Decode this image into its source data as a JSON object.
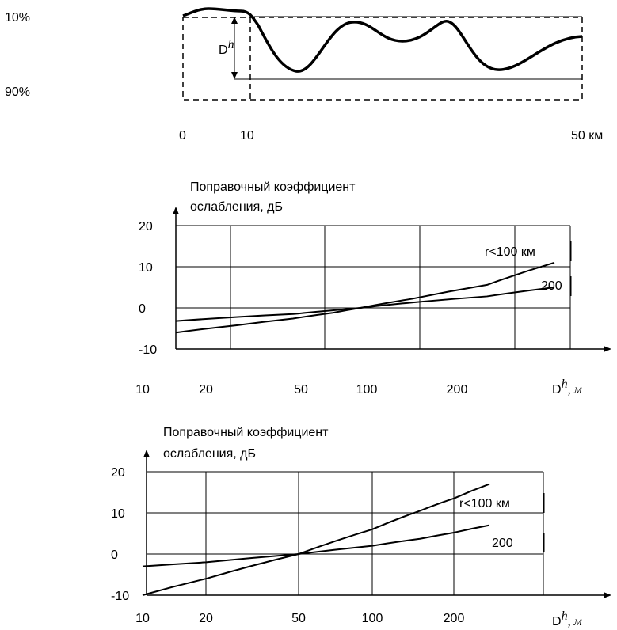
{
  "terrain": {
    "label_top_pct": "10%",
    "label_bottom_pct": "90%",
    "dh_label_main": "D",
    "dh_label_sup": "h",
    "x_ticks": [
      "0",
      "10",
      "50 км"
    ]
  },
  "chart_data": [
    {
      "type": "line",
      "title": "Поправочный коэффициент ослабления, дБ",
      "title_lines": [
        "Поправочный коэффициент",
        "ослабления, дБ"
      ],
      "xlabel_main": "D",
      "xlabel_sup": "h",
      "xlabel_unit": ", м",
      "x_scale": "log",
      "x_ticks": [
        "10",
        "20",
        "50",
        "100",
        "200"
      ],
      "x_tick_values": [
        10,
        20,
        50,
        100,
        200
      ],
      "y_ticks": [
        "20",
        "10",
        "0",
        "-10"
      ],
      "y_tick_values": [
        20,
        10,
        0,
        -10
      ],
      "ylim": [
        -10,
        20
      ],
      "xlim": [
        10,
        500
      ],
      "grid": true,
      "series": [
        {
          "name": "r<100 км",
          "x": [
            10,
            30,
            50,
            70,
            90,
            150,
            250,
            400
          ],
          "y": [
            -6,
            -4.2,
            -2.6,
            -1.2,
            0,
            2.2,
            5.6,
            11
          ]
        },
        {
          "name": "200",
          "x": [
            10,
            30,
            50,
            70,
            90,
            150,
            250,
            450
          ],
          "y": [
            -3.2,
            -2.2,
            -1.5,
            -0.6,
            0,
            1.3,
            2.8,
            5
          ]
        }
      ]
    },
    {
      "type": "line",
      "title": "Поправочный коэффициент ослабления, дБ",
      "title_lines": [
        "Поправочный коэффициент",
        "ослабления, дБ"
      ],
      "xlabel_main": "D",
      "xlabel_sup": "h",
      "xlabel_unit": ", м",
      "x_scale": "log",
      "x_ticks": [
        "10",
        "20",
        "50",
        "100",
        "200"
      ],
      "x_tick_values": [
        10,
        20,
        50,
        100,
        200
      ],
      "y_ticks": [
        "20",
        "10",
        "0",
        "-10"
      ],
      "y_tick_values": [
        20,
        10,
        0,
        -10
      ],
      "ylim": [
        -10,
        20
      ],
      "xlim": [
        10,
        500
      ],
      "grid": true,
      "series": [
        {
          "name": "r<100 км",
          "x": [
            10,
            20,
            50,
            100,
            150,
            200,
            300
          ],
          "y": [
            -10,
            -6,
            0,
            6,
            10.5,
            13.5,
            17
          ]
        },
        {
          "name": "200",
          "x": [
            10,
            20,
            50,
            100,
            150,
            200,
            300
          ],
          "y": [
            -3,
            -2,
            0,
            2,
            3.7,
            5.2,
            7
          ]
        }
      ]
    }
  ]
}
